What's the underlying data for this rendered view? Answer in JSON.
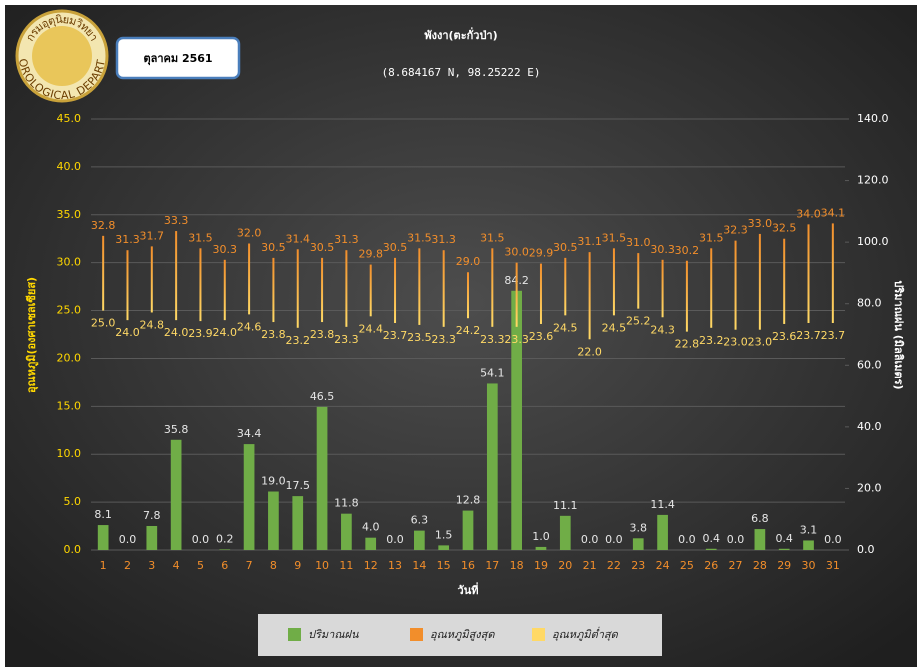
{
  "logo": {
    "top": "กรมอุตุนิยมวิทยา",
    "bottom": "METEOROLOGICAL DEPARTMENT"
  },
  "chart_data": {
    "type": "bar",
    "title": "พังงา(ตะกั่วป่า)",
    "subtitle": "(8.684167 N, 98.25222 E)",
    "period": "ตุลาคม 2561",
    "x_label": "วันที่",
    "y_label": "อุณหภูมิ(องศาเซลเซียส)",
    "y2_label": "ปริมาณฝน (มิลลิเมตร)",
    "categories": [
      "1",
      "2",
      "3",
      "4",
      "5",
      "6",
      "7",
      "8",
      "9",
      "10",
      "11",
      "12",
      "13",
      "14",
      "15",
      "16",
      "17",
      "18",
      "19",
      "20",
      "21",
      "22",
      "23",
      "24",
      "25",
      "26",
      "27",
      "28",
      "29",
      "30",
      "31"
    ],
    "ylim": [
      0,
      45
    ],
    "yticks": [
      {
        "value": 0,
        "label": "0.0"
      },
      {
        "value": 5,
        "label": "5.0"
      },
      {
        "value": 10,
        "label": "10.0"
      },
      {
        "value": 15,
        "label": "15.0"
      },
      {
        "value": 20,
        "label": "20.0"
      },
      {
        "value": 25,
        "label": "25.0"
      },
      {
        "value": 30,
        "label": "30.0"
      },
      {
        "value": 35,
        "label": "35.0"
      },
      {
        "value": 40,
        "label": "40.0"
      },
      {
        "value": 45,
        "label": "45.0"
      }
    ],
    "y2lim": [
      0,
      140
    ],
    "y2ticks": [
      {
        "value": 0,
        "label": "0.0"
      },
      {
        "value": 20,
        "label": "20.0"
      },
      {
        "value": 40,
        "label": "40.0"
      },
      {
        "value": 60,
        "label": "60.0"
      },
      {
        "value": 80,
        "label": "80.0"
      },
      {
        "value": 100,
        "label": "100.0"
      },
      {
        "value": 120,
        "label": "120.0"
      },
      {
        "value": 140,
        "label": "140.0"
      }
    ],
    "grid": true,
    "legend": "bottom",
    "series": [
      {
        "name": "ปริมาณฝน",
        "color": "#70ad47",
        "axis": "y2",
        "values": [
          8.1,
          0,
          7.8,
          35.8,
          0,
          0.2,
          34.4,
          19,
          17.5,
          46.5,
          11.8,
          4,
          0,
          6.3,
          1.5,
          12.8,
          54.1,
          84.2,
          1,
          11.1,
          0,
          0,
          3.8,
          11.4,
          0,
          0.4,
          0,
          6.8,
          0.4,
          3.1,
          0
        ],
        "value_labels": [
          "8.1",
          "0.0",
          "7.8",
          "35.8",
          "0.0",
          "0.2",
          "34.4",
          "19.0",
          "17.5",
          "46.5",
          "11.8",
          "4.0",
          "0.0",
          "6.3",
          "1.5",
          "12.8",
          "54.1",
          "84.2",
          "1.0",
          "11.1",
          "0.0",
          "0.0",
          "3.8",
          "11.4",
          "0.0",
          "0.4",
          "0.0",
          "6.8",
          "0.4",
          "3.1",
          "0.0"
        ]
      },
      {
        "name": "อุณหภูมิสูงสุด",
        "color": "#f28e2b",
        "values": [
          32.8,
          31.3,
          31.7,
          33.3,
          31.5,
          30.3,
          32,
          30.5,
          31.4,
          30.5,
          31.3,
          29.8,
          30.5,
          31.5,
          31.3,
          29,
          31.5,
          30,
          29.9,
          30.5,
          31.1,
          31.5,
          31,
          30.3,
          30.2,
          31.5,
          32.3,
          33,
          32.5,
          34,
          34.1
        ],
        "value_labels": [
          "32.8",
          "31.3",
          "31.7",
          "33.3",
          "31.5",
          "30.3",
          "32.0",
          "30.5",
          "31.4",
          "30.5",
          "31.3",
          "29.8",
          "30.5",
          "31.5",
          "31.3",
          "29.0",
          "31.5",
          "30.0",
          "29.9",
          "30.5",
          "31.1",
          "31.5",
          "31.0",
          "30.3",
          "30.2",
          "31.5",
          "32.3",
          "33.0",
          "32.5",
          "34.0",
          "34.1"
        ]
      },
      {
        "name": "อุณหภูมิต่ำสุด",
        "color": "#ffd966",
        "values": [
          25,
          24,
          24.8,
          24,
          23.9,
          24,
          24.6,
          23.8,
          23.2,
          23.8,
          23.3,
          24.4,
          23.7,
          23.5,
          23.3,
          24.2,
          23.3,
          23.3,
          23.6,
          24.5,
          22,
          24.5,
          25.2,
          24.3,
          22.8,
          23.2,
          23,
          23,
          23.6,
          23.7,
          23.7
        ],
        "value_labels": [
          "25.0",
          "24.0",
          "24.8",
          "24.0",
          "23.9",
          "24.0",
          "24.6",
          "23.8",
          "23.2",
          "23.8",
          "23.3",
          "24.4",
          "23.7",
          "23.5",
          "23.3",
          "24.2",
          "23.3",
          "23.3",
          "23.6",
          "24.5",
          "22.0",
          "24.5",
          "25.2",
          "24.3",
          "22.8",
          "23.2",
          "23.0",
          "23.0",
          "23.6",
          "23.7",
          "23.7"
        ]
      }
    ]
  }
}
